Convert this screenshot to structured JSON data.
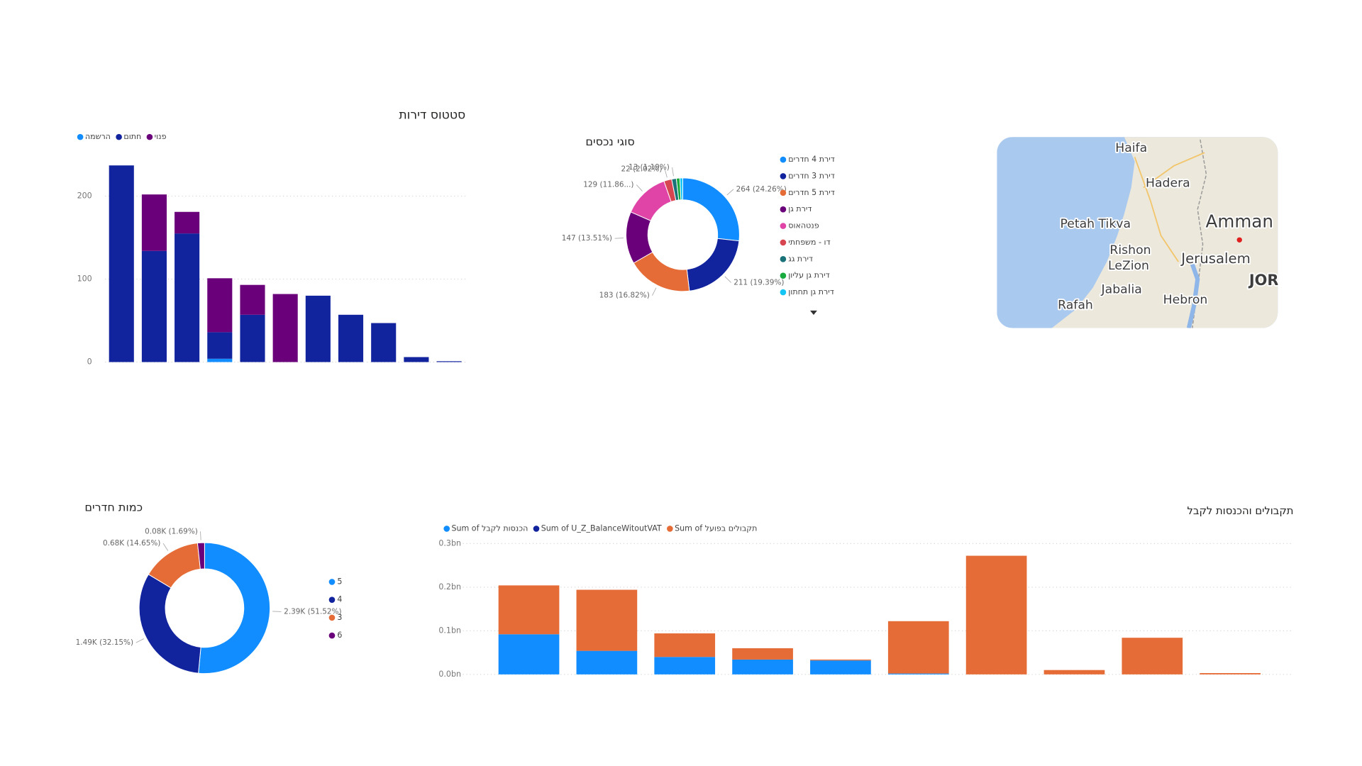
{
  "chart_data": [
    {
      "type": "bar",
      "stacked": true,
      "title": "סטטוס דירות",
      "categories": [
        null,
        null,
        null,
        null,
        null,
        null,
        null,
        null,
        null,
        null,
        null
      ],
      "series": [
        {
          "name": "הרשמה",
          "color": "#118DFF",
          "values": [
            0,
            0,
            0,
            4,
            0,
            0,
            0,
            0,
            0,
            0,
            0
          ]
        },
        {
          "name": "חתום",
          "color": "#12239E",
          "values": [
            237,
            134,
            155,
            32,
            57,
            0,
            80,
            57,
            47,
            6,
            1
          ]
        },
        {
          "name": "פנוי",
          "color": "#6B007B",
          "values": [
            0,
            68,
            26,
            65,
            36,
            82,
            0,
            0,
            0,
            0,
            0
          ]
        }
      ],
      "ylim": [
        0,
        245
      ],
      "yticks": [
        0,
        100,
        200
      ],
      "grid": true,
      "legend": "top-left"
    },
    {
      "type": "donut",
      "title": "סוגי נכסים",
      "categories": [
        "דירת 4 חדרים",
        "דירת 3 חדרים",
        "דירת 5 חדרים",
        "דירת גן",
        "פנטהאוס",
        "דו - משפחתי",
        "דירת גג",
        "דירת גן עליון",
        "דירת גן תחתון"
      ],
      "values": [
        264,
        211,
        183,
        147,
        129,
        22,
        13,
        10,
        8
      ],
      "value_labels": [
        "264 (24.26%)",
        "211 (19.39%)",
        "183 (16.82%)",
        "147 (13.51%)",
        "129 (11.86...)",
        "22 (2.02%)",
        "13 (1.19%)",
        null,
        null
      ],
      "colors": [
        "#118DFF",
        "#12239E",
        "#E66C37",
        "#6B007B",
        "#E044A7",
        "#D64550",
        "#197278",
        "#1AAB40",
        "#15C6F4"
      ],
      "legend": "right"
    },
    {
      "type": "donut",
      "title": "כמות חדרים",
      "categories": [
        "5",
        "4",
        "3",
        "6"
      ],
      "values": [
        2390,
        1490,
        680,
        80
      ],
      "value_labels": [
        "2.39K (51.52%)",
        "1.49K (32.15%)",
        "0.68K (14.65%)",
        "0.08K (1.69%)"
      ],
      "colors": [
        "#118DFF",
        "#12239E",
        "#E66C37",
        "#6B007B"
      ],
      "legend": "right"
    },
    {
      "type": "bar",
      "stacked": true,
      "title": "תקבולים והכנסות לקבל",
      "categories": [
        null,
        null,
        null,
        null,
        null,
        null,
        null,
        null,
        null,
        null
      ],
      "series": [
        {
          "name": "Sum of הכנסות לקבל",
          "color": "#118DFF",
          "values": [
            92000000,
            54000000,
            40000000,
            34000000,
            32000000,
            2000000,
            0,
            0,
            0,
            0
          ]
        },
        {
          "name": "Sum of U_Z_BalanceWitoutVAT",
          "color": "#12239E",
          "values": [
            0,
            0,
            0,
            0,
            0,
            0,
            0,
            0,
            0,
            0
          ]
        },
        {
          "name": "Sum of תקבולים בפועל",
          "color": "#E66C37",
          "values": [
            112000000,
            140000000,
            54000000,
            26000000,
            2000000,
            120000000,
            272000000,
            10000000,
            84000000,
            3000000
          ]
        }
      ],
      "ylim": [
        0,
        300000000
      ],
      "yticks": [
        {
          "value": 0,
          "label": "0.0bn"
        },
        {
          "value": 100000000,
          "label": "0.1bn"
        },
        {
          "value": 200000000,
          "label": "0.2bn"
        },
        {
          "value": 300000000,
          "label": "0.3bn"
        }
      ],
      "grid": true,
      "legend": "top-left"
    }
  ],
  "map": {
    "places": [
      "Haifa",
      "Hadera",
      "Petah Tikva",
      "Amman",
      "Rishon",
      "LeZion",
      "Jerusalem",
      "JOR",
      "Jabalia",
      "Rafah",
      "Hebron"
    ]
  }
}
